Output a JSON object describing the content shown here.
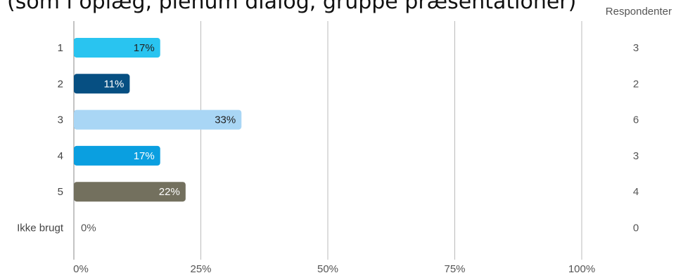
{
  "title": "(som i oplæg, plenum dialog, gruppe præsentationer)",
  "respondents_header": "Respondenter",
  "chart_data": {
    "type": "bar",
    "orientation": "horizontal",
    "categories": [
      "1",
      "2",
      "3",
      "4",
      "5",
      "Ikke brugt"
    ],
    "values": [
      17,
      11,
      33,
      17,
      22,
      0
    ],
    "value_labels": [
      "17%",
      "11%",
      "33%",
      "17%",
      "22%",
      "0%"
    ],
    "respondents": [
      3,
      2,
      6,
      3,
      4,
      0
    ],
    "colors": [
      "#29c4f0",
      "#064f82",
      "#a9d6f5",
      "#0a9fe0",
      "#73705e",
      "#cccccc"
    ],
    "label_colors": [
      "#222222",
      "#ffffff",
      "#222222",
      "#ffffff",
      "#ffffff",
      "#555555"
    ],
    "xlim": [
      0,
      100
    ],
    "xticks": [
      0,
      25,
      50,
      75,
      100
    ],
    "xtick_labels": [
      "0%",
      "25%",
      "50%",
      "75%",
      "100%"
    ],
    "grid": true
  }
}
